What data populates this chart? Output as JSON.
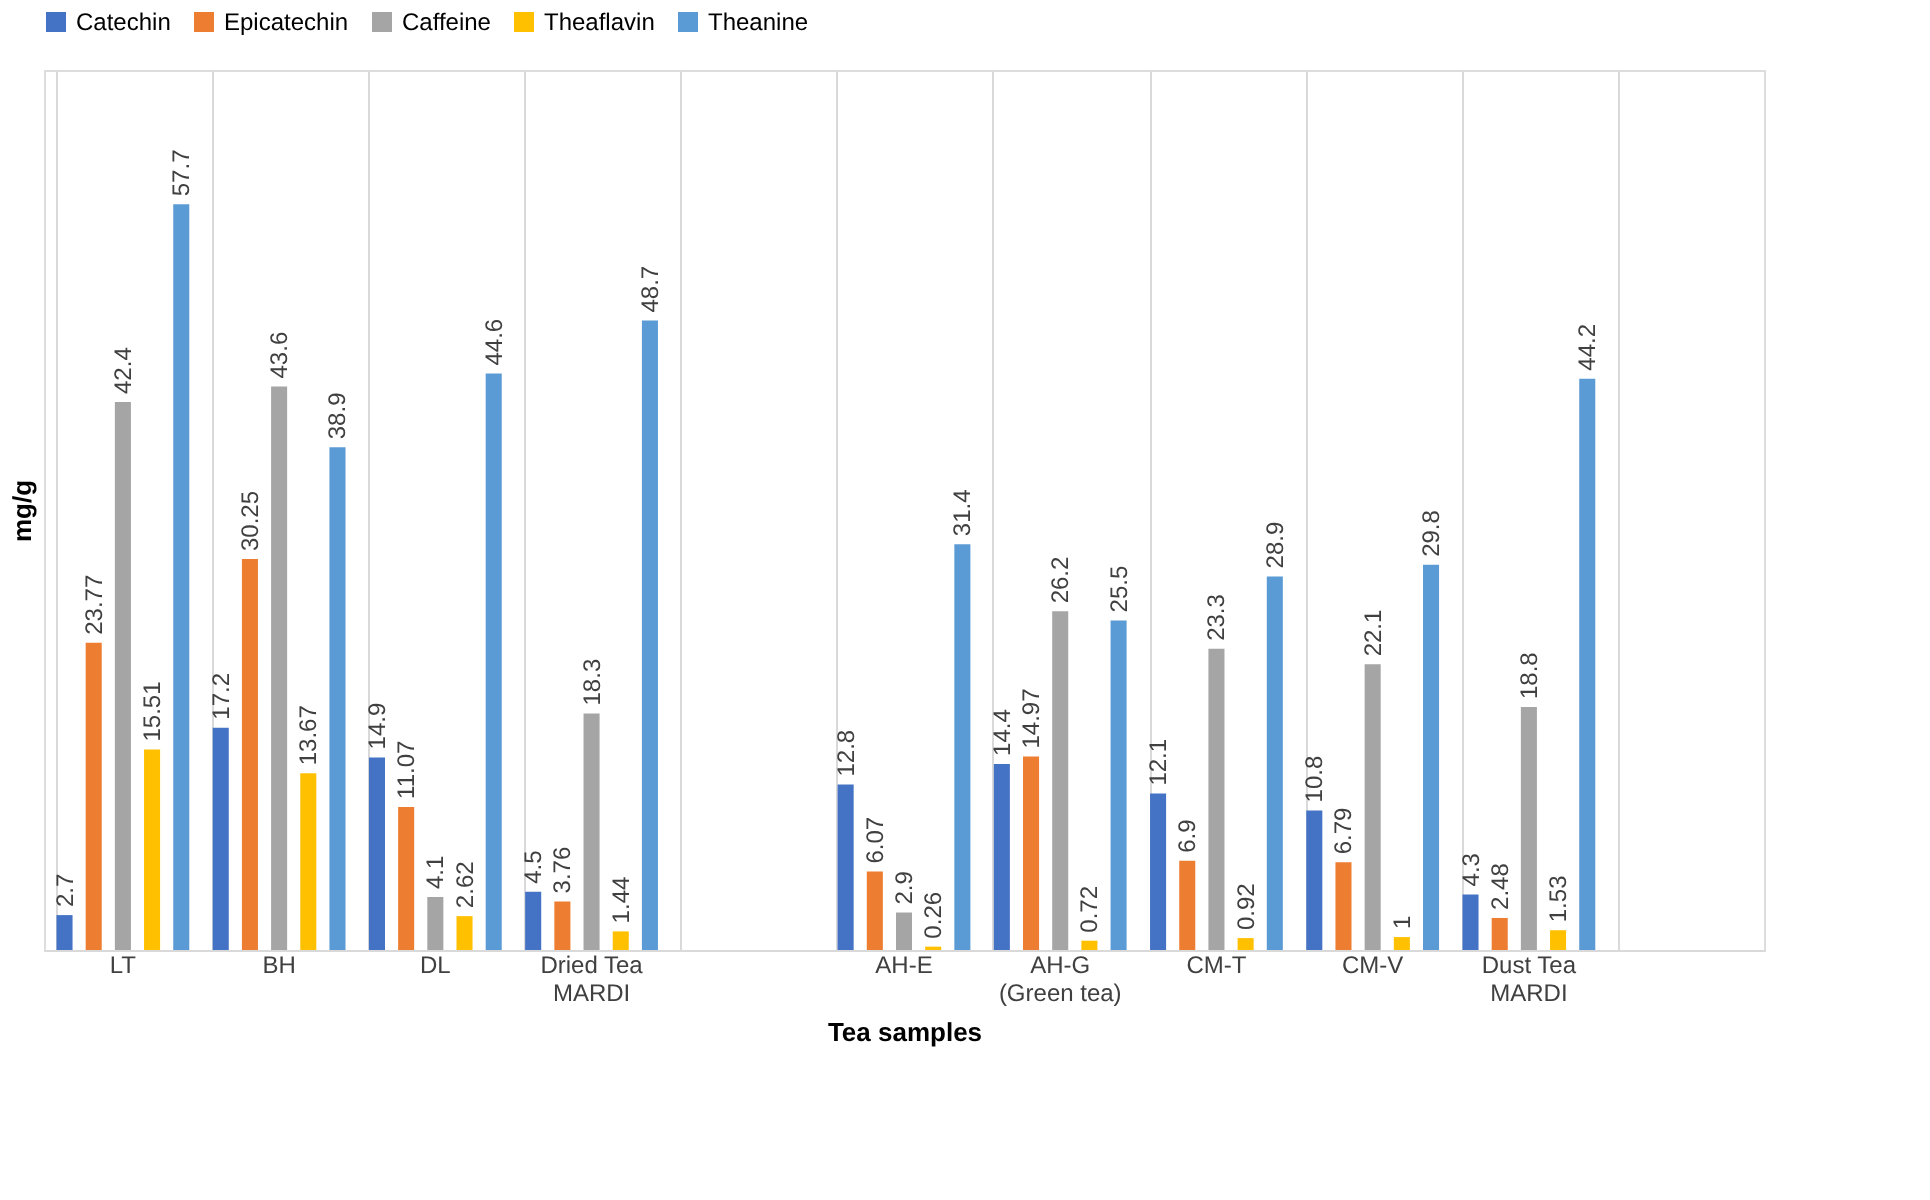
{
  "chart_data": {
    "type": "bar",
    "categories": [
      "LT",
      "BH",
      "DL",
      "Dried Tea\nMARDI",
      null,
      "AH-E",
      "AH-G\n(Green tea)",
      "CM-T",
      "CM-V",
      "Dust Tea\nMARDI",
      null
    ],
    "xlabel": "Tea samples",
    "ylabel": "mg/g",
    "series": [
      {
        "name": "Catechin",
        "color": "#4472c4",
        "values": [
          2.7,
          17.2,
          14.9,
          4.5,
          null,
          12.8,
          14.4,
          12.1,
          10.8,
          4.3,
          null
        ]
      },
      {
        "name": "Epicatechin",
        "color": "#ed7d31",
        "values": [
          23.77,
          30.25,
          11.07,
          3.76,
          null,
          6.07,
          14.97,
          6.9,
          6.79,
          2.48,
          null
        ]
      },
      {
        "name": "Caffeine",
        "color": "#a5a5a5",
        "values": [
          42.4,
          43.6,
          4.1,
          18.3,
          null,
          2.9,
          26.2,
          23.3,
          22.1,
          18.8,
          null
        ]
      },
      {
        "name": "Theaflavin",
        "color": "#ffc000",
        "values": [
          15.51,
          13.67,
          2.62,
          1.44,
          null,
          0.26,
          0.72,
          0.92,
          1,
          1.53,
          null
        ]
      },
      {
        "name": "Theanine",
        "color": "#5b9bd5",
        "values": [
          57.7,
          38.9,
          44.6,
          48.7,
          null,
          31.4,
          25.5,
          28.9,
          29.8,
          44.2,
          null
        ]
      }
    ],
    "data_labels": true,
    "legend": "top",
    "grid": "x",
    "tick_labels": "x"
  }
}
